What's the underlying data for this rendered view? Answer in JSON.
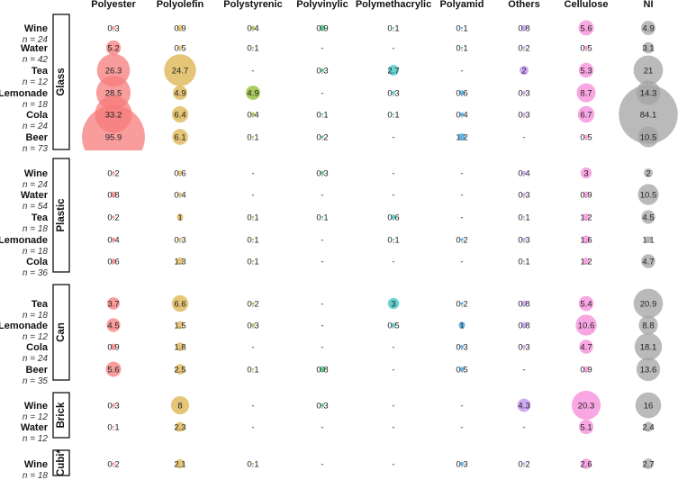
{
  "chart_data": {
    "type": "bubble-table",
    "columns": [
      "Polyester",
      "Polyolefin",
      "Polystyrenic",
      "Polyvinylic",
      "Polymethacrylic",
      "Polyamid",
      "Others",
      "Cellulose",
      "NI"
    ],
    "colors": [
      "#f77b7b",
      "#dcb24a",
      "#8dbb2a",
      "#2fb56c",
      "#35c2c2",
      "#2f9ee0",
      "#c08ff0",
      "#f78ad8",
      "#a3a3a3"
    ],
    "groups": [
      {
        "name": "Glass",
        "rows": [
          {
            "label": "Wine",
            "n": "n = 24",
            "values": [
              "0.3",
              "0.9",
              "0.4",
              "0.9",
              "0.1",
              "0.1",
              "0.8",
              "5.6",
              "4.9"
            ]
          },
          {
            "label": "Water",
            "n": "n = 42",
            "values": [
              "5.2",
              "0.5",
              "0.1",
              "-",
              "-",
              "0.1",
              "0.2",
              "0.5",
              "3.1"
            ]
          },
          {
            "label": "Tea",
            "n": "n = 12",
            "values": [
              "26.3",
              "24.7",
              "-",
              "0.3",
              "2.7",
              "-",
              "2",
              "5.3",
              "21"
            ]
          },
          {
            "label": "Lemonade",
            "n": "n = 18",
            "values": [
              "28.5",
              "4.9",
              "4.9",
              "-",
              "0.3",
              "0.6",
              "0.3",
              "8.7",
              "14.3"
            ]
          },
          {
            "label": "Cola",
            "n": "n = 24",
            "values": [
              "33.2",
              "6.4",
              "0.4",
              "0.1",
              "0.1",
              "0.4",
              "0.3",
              "6.7",
              "84.1"
            ]
          },
          {
            "label": "Beer",
            "n": "n = 73",
            "values": [
              "95.9",
              "6.1",
              "0.1",
              "0.2",
              "-",
              "1.2",
              "-",
              "0.5",
              "10.5"
            ]
          }
        ]
      },
      {
        "name": "Plastic",
        "rows": [
          {
            "label": "Wine",
            "n": "n = 24",
            "values": [
              "0.2",
              "0.6",
              "-",
              "0.3",
              "-",
              "-",
              "0.4",
              "3",
              "2"
            ]
          },
          {
            "label": "Water",
            "n": "n = 54",
            "values": [
              "0.8",
              "0.4",
              "-",
              "-",
              "-",
              "-",
              "0.3",
              "0.9",
              "10.5"
            ]
          },
          {
            "label": "Tea",
            "n": "n = 18",
            "values": [
              "0.2",
              "1",
              "0.1",
              "0.1",
              "0.6",
              "-",
              "0.1",
              "1.2",
              "4.5"
            ]
          },
          {
            "label": "Lemonade",
            "n": "n = 18",
            "values": [
              "0.4",
              "0.3",
              "0.1",
              "-",
              "0.1",
              "0.2",
              "0.3",
              "1.6",
              "1.1"
            ]
          },
          {
            "label": "Cola",
            "n": "n = 36",
            "values": [
              "0.6",
              "1.3",
              "0.1",
              "-",
              "-",
              "-",
              "0.1",
              "1.2",
              "4.7"
            ]
          }
        ]
      },
      {
        "name": "Can",
        "rows": [
          {
            "label": "Tea",
            "n": "n = 18",
            "values": [
              "3.7",
              "6.6",
              "0.2",
              "-",
              "3",
              "0.2",
              "0.8",
              "5.4",
              "20.9"
            ]
          },
          {
            "label": "Lemonade",
            "n": "n = 12",
            "values": [
              "4.5",
              "1.5",
              "0.3",
              "-",
              "0.5",
              "1",
              "0.8",
              "10.6",
              "8.8"
            ]
          },
          {
            "label": "Cola",
            "n": "n = 24",
            "values": [
              "0.9",
              "1.8",
              "-",
              "-",
              "-",
              "0.3",
              "0.3",
              "4.7",
              "18.1"
            ]
          },
          {
            "label": "Beer",
            "n": "n = 35",
            "values": [
              "5.6",
              "2.5",
              "0.1",
              "0.8",
              "-",
              "0.5",
              "-",
              "0.9",
              "13.6"
            ]
          }
        ]
      },
      {
        "name": "Brick",
        "rows": [
          {
            "label": "Wine",
            "n": "n = 12",
            "values": [
              "0.3",
              "8",
              "-",
              "0.3",
              "-",
              "-",
              "4.3",
              "20.3",
              "16"
            ]
          },
          {
            "label": "Water",
            "n": "n = 12",
            "values": [
              "0.1",
              "2.3",
              "-",
              "-",
              "-",
              "-",
              "-",
              "5.1",
              "2.4"
            ]
          }
        ]
      },
      {
        "name": "Cubi*",
        "rows": [
          {
            "label": "Wine",
            "n": "n = 18",
            "values": [
              "0.2",
              "2.1",
              "0.1",
              "-",
              "-",
              "0.3",
              "0.2",
              "2.6",
              "2.7"
            ]
          }
        ]
      }
    ]
  }
}
